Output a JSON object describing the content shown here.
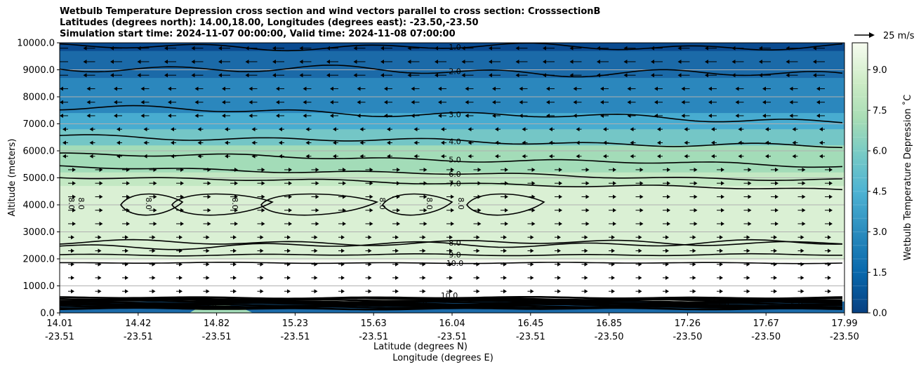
{
  "title_lines": [
    "Wetbulb Temperature Depression cross section and wind vectors parallel to cross section: CrosssectionB",
    "Latitudes (degrees north): 14.00,18.00, Longitudes (degrees east): -23.50,-23.50",
    "Simulation start time: 2024-11-07 00:00:00, Valid time: 2024-11-08 07:00:00"
  ],
  "chart_data": {
    "type": "contour",
    "ylabel": "Altitude (meters)",
    "xlabel_lines": [
      "Latitude (degrees N)",
      "Longitude (degrees E)"
    ],
    "ylim": [
      0,
      10000
    ],
    "y_ticks": [
      "0.0",
      "1000.0",
      "2000.0",
      "3000.0",
      "4000.0",
      "5000.0",
      "6000.0",
      "7000.0",
      "8000.0",
      "9000.0",
      "10000.0"
    ],
    "x_ticks": [
      {
        "lat": "14.01",
        "lon": "-23.51"
      },
      {
        "lat": "14.42",
        "lon": "-23.51"
      },
      {
        "lat": "14.82",
        "lon": "-23.51"
      },
      {
        "lat": "15.23",
        "lon": "-23.51"
      },
      {
        "lat": "15.63",
        "lon": "-23.51"
      },
      {
        "lat": "16.04",
        "lon": "-23.51"
      },
      {
        "lat": "16.45",
        "lon": "-23.51"
      },
      {
        "lat": "16.85",
        "lon": "-23.50"
      },
      {
        "lat": "17.26",
        "lon": "-23.50"
      },
      {
        "lat": "17.67",
        "lon": "-23.50"
      },
      {
        "lat": "17.99",
        "lon": "-23.50"
      }
    ],
    "colorbar": {
      "label": "Wetbulb Temperature Depression ˚C",
      "ticks": [
        "0.0",
        "1.5",
        "3.0",
        "4.5",
        "6.0",
        "7.5",
        "9.0"
      ],
      "range": [
        0,
        10
      ]
    },
    "vector_key": "25 m/s",
    "contour_levels": [
      {
        "level": 1.0,
        "alt": 9850,
        "label": "1.0"
      },
      {
        "level": 2.0,
        "alt": 9100,
        "label": "2.0"
      },
      {
        "level": 3.0,
        "alt": 7600,
        "label": "3.0"
      },
      {
        "level": 4.0,
        "alt": 6550,
        "label": "4.0"
      },
      {
        "level": 5.0,
        "alt": 5900,
        "label": "5.0"
      },
      {
        "level": 6.0,
        "alt": 5400,
        "label": "6.0"
      },
      {
        "level": 7.0,
        "alt": 5050,
        "label": "7.0"
      },
      {
        "level": 8.0,
        "alt": 2600,
        "label": "8.0"
      },
      {
        "level": 9.0,
        "alt": 2150,
        "label": "9.0"
      },
      {
        "level": 10.0,
        "alt": 1850,
        "label": "10.0"
      }
    ],
    "inner_labels": [
      "8.0",
      "8.0",
      "8.0",
      "8.0",
      "8.0",
      "8.0",
      "8.0"
    ],
    "surface_labels": [
      "10.0",
      "5.0",
      "1.0",
      "0.0",
      "1.0",
      "1.0",
      "5.0"
    ],
    "colors": {
      "c0": "#0a4a8f",
      "c1": "#1b6aa8",
      "c2": "#2b87bd",
      "c3": "#48acd0",
      "c4": "#74c6c6",
      "c5": "#a3dcb8",
      "c6": "#c3e8c3",
      "c7": "#daf0d4",
      "c8": "#f5fbef"
    }
  }
}
